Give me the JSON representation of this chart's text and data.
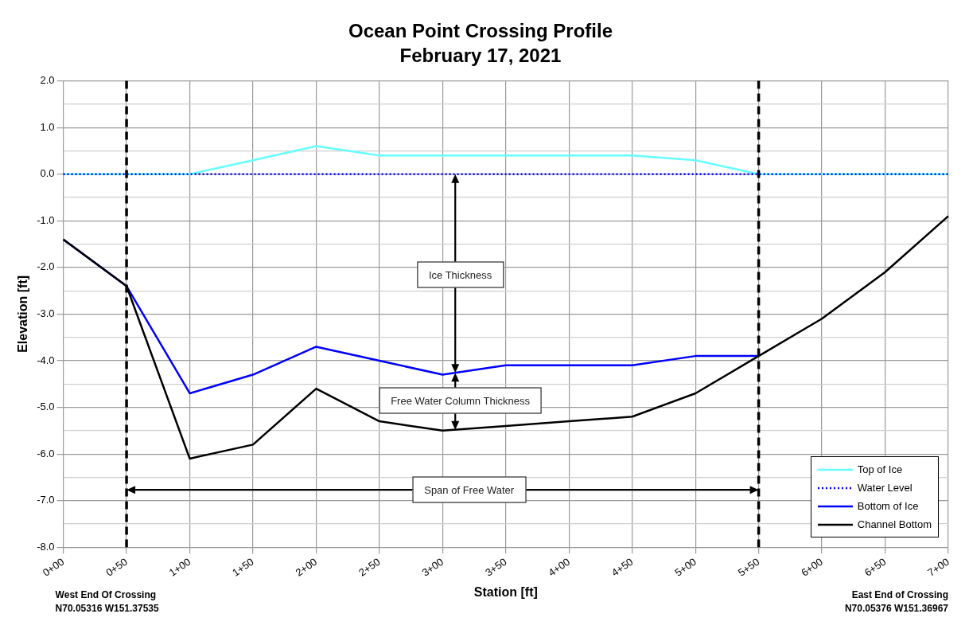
{
  "chart_data": {
    "type": "line",
    "title": "Ocean Point Crossing Profile",
    "subtitle": "February 17, 2021",
    "xlabel": "Station [ft]",
    "ylabel": "Elevation [ft]",
    "categories": [
      "0+00",
      "0+50",
      "1+00",
      "1+50",
      "2+00",
      "2+50",
      "3+00",
      "3+50",
      "4+00",
      "4+50",
      "5+00",
      "5+50",
      "6+00",
      "6+50",
      "7+00"
    ],
    "series": [
      {
        "name": "Top of Ice",
        "color": "#66ffff",
        "line_style": "solid",
        "values": [
          0,
          0,
          0,
          0.3,
          0.6,
          0.4,
          0.4,
          0.4,
          0.4,
          0.4,
          0.3,
          0,
          0,
          0,
          0
        ]
      },
      {
        "name": "Water Level",
        "color": "#0000ff",
        "line_style": "dotted",
        "values": [
          0,
          0,
          0,
          0,
          0,
          0,
          0,
          0,
          0,
          0,
          0,
          0,
          0,
          0,
          0
        ]
      },
      {
        "name": "Bottom of Ice",
        "color": "#0000ff",
        "line_style": "solid",
        "values": [
          -1.4,
          -2.4,
          -4.7,
          -4.3,
          -3.7,
          -4.0,
          -4.3,
          -4.1,
          -4.1,
          -4.1,
          -3.9,
          -3.9,
          null,
          null,
          null
        ]
      },
      {
        "name": "Channel Bottom",
        "color": "#000000",
        "line_style": "solid",
        "values": [
          -1.4,
          -2.4,
          -6.1,
          -5.8,
          -4.6,
          -5.3,
          -5.5,
          -5.4,
          -5.3,
          -5.2,
          -4.7,
          -3.9,
          -3.1,
          -2.1,
          -0.9
        ]
      }
    ],
    "ylim": [
      -8,
      2
    ],
    "yticks": [
      {
        "value": -8,
        "label": "-8.0"
      },
      {
        "value": -7.5,
        "label": null
      },
      {
        "value": -7,
        "label": "-7.0"
      },
      {
        "value": -6.5,
        "label": null
      },
      {
        "value": -6,
        "label": "-6.0"
      },
      {
        "value": -5.5,
        "label": null
      },
      {
        "value": -5,
        "label": "-5.0"
      },
      {
        "value": -4.5,
        "label": null
      },
      {
        "value": -4,
        "label": "-4.0"
      },
      {
        "value": -3.5,
        "label": null
      },
      {
        "value": -3,
        "label": "-3.0"
      },
      {
        "value": -2.5,
        "label": null
      },
      {
        "value": -2,
        "label": "-2.0"
      },
      {
        "value": -1.5,
        "label": null
      },
      {
        "value": -1,
        "label": "-1.0"
      },
      {
        "value": -0.5,
        "label": null
      },
      {
        "value": 0,
        "label": "0.0"
      },
      {
        "value": 0.5,
        "label": null
      },
      {
        "value": 1,
        "label": "1.0"
      },
      {
        "value": 1.5,
        "label": null
      },
      {
        "value": 2,
        "label": "2.0"
      }
    ],
    "grid": true,
    "legend": "bottom right",
    "marker": "none",
    "ref_lines": [
      {
        "axis": "x",
        "value": "0+50",
        "label": null,
        "color": "#000000",
        "line_style": "dashed"
      },
      {
        "axis": "x",
        "value": "5+50",
        "label": null,
        "color": "#000000",
        "line_style": "dashed"
      }
    ],
    "annotations": [
      "Ice Thickness",
      "Free Water Column Thickness",
      "Span of Free Water",
      "West End Of Crossing\nN70.05316  W151.37535",
      "East End of Crossing\nN70.05376  W151.36967"
    ]
  }
}
